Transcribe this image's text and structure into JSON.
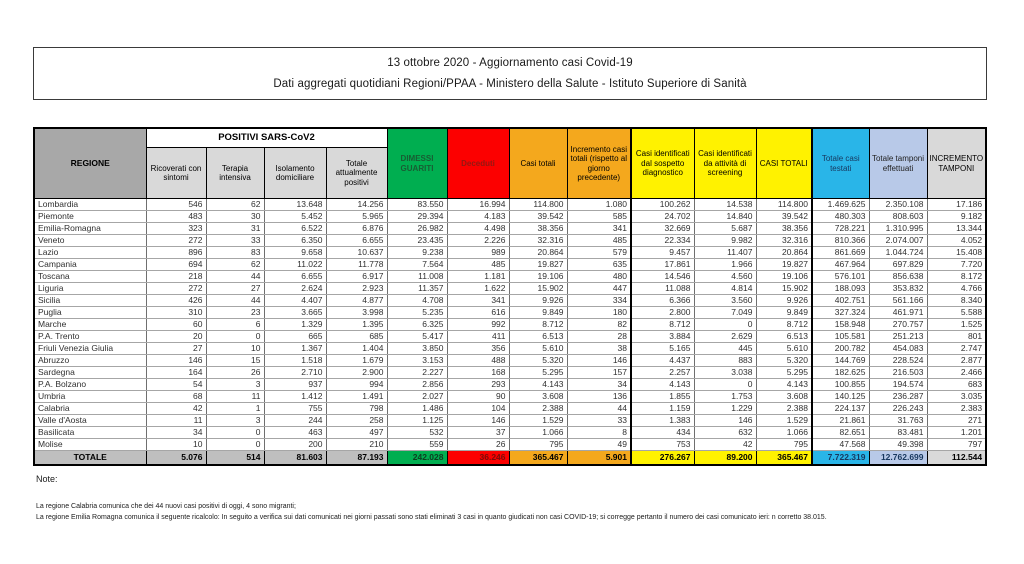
{
  "header": {
    "line1": "13 ottobre 2020 - Aggiornamento casi Covid-19",
    "line2": "Dati aggregati quotidiani Regioni/PPAA - Ministero della Salute - Istituto Superiore di Sanità"
  },
  "table": {
    "group_header": "POSITIVI SARS-CoV2",
    "columns": [
      {
        "label": "REGIONE",
        "bg": "#A8A8A8",
        "fg": "#000000",
        "total_bg": "#BFBFBF",
        "total_fg": "#000000"
      },
      {
        "label": "Ricoverati con sintomi",
        "bg": "#D9D9D9",
        "fg": "#000000",
        "total_bg": "#BFBFBF",
        "total_fg": "#000000"
      },
      {
        "label": "Terapia intensiva",
        "bg": "#D9D9D9",
        "fg": "#000000",
        "total_bg": "#BFBFBF",
        "total_fg": "#000000"
      },
      {
        "label": "Isolamento domiciliare",
        "bg": "#D9D9D9",
        "fg": "#000000",
        "total_bg": "#BFBFBF",
        "total_fg": "#000000"
      },
      {
        "label": "Totale attualmente positivi",
        "bg": "#D9D9D9",
        "fg": "#000000",
        "total_bg": "#BFBFBF",
        "total_fg": "#000000"
      },
      {
        "label": "DIMESSI GUARITI",
        "bg": "#00AE50",
        "fg": "#175E33",
        "total_bg": "#00AE50",
        "total_fg": "#0C3D20"
      },
      {
        "label": "Deceduti",
        "bg": "#FC0000",
        "fg": "#941712",
        "total_bg": "#FC0000",
        "total_fg": "#7A0C08"
      },
      {
        "label": "Casi totali",
        "bg": "#F4A81D",
        "fg": "#000000",
        "total_bg": "#F4A81D",
        "total_fg": "#000000"
      },
      {
        "label": "Incremento casi totali (rispetto al giorno precedente)",
        "bg": "#F4A81D",
        "fg": "#000000",
        "total_bg": "#F4A81D",
        "total_fg": "#000000"
      },
      {
        "label": "Casi identificati dal sospetto diagnostico",
        "bg": "#FFF200",
        "fg": "#000000",
        "total_bg": "#FFF200",
        "total_fg": "#000000"
      },
      {
        "label": "Casi identificati da attività di screening",
        "bg": "#FFF200",
        "fg": "#000000",
        "total_bg": "#FFF200",
        "total_fg": "#000000"
      },
      {
        "label": "CASI TOTALI",
        "bg": "#FFF200",
        "fg": "#000000",
        "total_bg": "#FFF200",
        "total_fg": "#000000"
      },
      {
        "label": "Totale casi testati",
        "bg": "#29B5E8",
        "fg": "#17375E",
        "total_bg": "#29B5E8",
        "total_fg": "#17375E"
      },
      {
        "label": "Totale tamponi effettuati",
        "bg": "#B8C9E8",
        "fg": "#222222",
        "total_bg": "#B8C9E8",
        "total_fg": "#17375E"
      },
      {
        "label": "INCREMENTO TAMPONI",
        "bg": "#D9D9D9",
        "fg": "#000000",
        "total_bg": "#D9D9D9",
        "total_fg": "#000000"
      }
    ],
    "rows": [
      {
        "region": "Lombardia",
        "values": [
          "546",
          "62",
          "13.648",
          "14.256",
          "83.550",
          "16.994",
          "114.800",
          "1.080",
          "100.262",
          "14.538",
          "114.800",
          "1.469.625",
          "2.350.108",
          "17.186"
        ]
      },
      {
        "region": "Piemonte",
        "values": [
          "483",
          "30",
          "5.452",
          "5.965",
          "29.394",
          "4.183",
          "39.542",
          "585",
          "24.702",
          "14.840",
          "39.542",
          "480.303",
          "808.603",
          "9.182"
        ]
      },
      {
        "region": "Emilia-Romagna",
        "values": [
          "323",
          "31",
          "6.522",
          "6.876",
          "26.982",
          "4.498",
          "38.356",
          "341",
          "32.669",
          "5.687",
          "38.356",
          "728.221",
          "1.310.995",
          "13.344"
        ]
      },
      {
        "region": "Veneto",
        "values": [
          "272",
          "33",
          "6.350",
          "6.655",
          "23.435",
          "2.226",
          "32.316",
          "485",
          "22.334",
          "9.982",
          "32.316",
          "810.366",
          "2.074.007",
          "4.052"
        ]
      },
      {
        "region": "Lazio",
        "values": [
          "896",
          "83",
          "9.658",
          "10.637",
          "9.238",
          "989",
          "20.864",
          "579",
          "9.457",
          "11.407",
          "20.864",
          "861.669",
          "1.044.724",
          "15.408"
        ]
      },
      {
        "region": "Campania",
        "values": [
          "694",
          "62",
          "11.022",
          "11.778",
          "7.564",
          "485",
          "19.827",
          "635",
          "17.861",
          "1.966",
          "19.827",
          "467.964",
          "697.829",
          "7.720"
        ]
      },
      {
        "region": "Toscana",
        "values": [
          "218",
          "44",
          "6.655",
          "6.917",
          "11.008",
          "1.181",
          "19.106",
          "480",
          "14.546",
          "4.560",
          "19.106",
          "576.101",
          "856.638",
          "8.172"
        ]
      },
      {
        "region": "Liguria",
        "values": [
          "272",
          "27",
          "2.624",
          "2.923",
          "11.357",
          "1.622",
          "15.902",
          "447",
          "11.088",
          "4.814",
          "15.902",
          "188.093",
          "353.832",
          "4.766"
        ]
      },
      {
        "region": "Sicilia",
        "values": [
          "426",
          "44",
          "4.407",
          "4.877",
          "4.708",
          "341",
          "9.926",
          "334",
          "6.366",
          "3.560",
          "9.926",
          "402.751",
          "561.166",
          "8.340"
        ]
      },
      {
        "region": "Puglia",
        "values": [
          "310",
          "23",
          "3.665",
          "3.998",
          "5.235",
          "616",
          "9.849",
          "180",
          "2.800",
          "7.049",
          "9.849",
          "327.324",
          "461.971",
          "5.588"
        ]
      },
      {
        "region": "Marche",
        "values": [
          "60",
          "6",
          "1.329",
          "1.395",
          "6.325",
          "992",
          "8.712",
          "82",
          "8.712",
          "0",
          "8.712",
          "158.948",
          "270.757",
          "1.525"
        ]
      },
      {
        "region": "P.A. Trento",
        "values": [
          "20",
          "0",
          "665",
          "685",
          "5.417",
          "411",
          "6.513",
          "28",
          "3.884",
          "2.629",
          "6.513",
          "105.581",
          "251.213",
          "801"
        ]
      },
      {
        "region": "Friuli Venezia Giulia",
        "values": [
          "27",
          "10",
          "1.367",
          "1.404",
          "3.850",
          "356",
          "5.610",
          "38",
          "5.165",
          "445",
          "5.610",
          "200.782",
          "454.083",
          "2.747"
        ]
      },
      {
        "region": "Abruzzo",
        "values": [
          "146",
          "15",
          "1.518",
          "1.679",
          "3.153",
          "488",
          "5.320",
          "146",
          "4.437",
          "883",
          "5.320",
          "144.769",
          "228.524",
          "2.877"
        ]
      },
      {
        "region": "Sardegna",
        "values": [
          "164",
          "26",
          "2.710",
          "2.900",
          "2.227",
          "168",
          "5.295",
          "157",
          "2.257",
          "3.038",
          "5.295",
          "182.625",
          "216.503",
          "2.466"
        ]
      },
      {
        "region": "P.A. Bolzano",
        "values": [
          "54",
          "3",
          "937",
          "994",
          "2.856",
          "293",
          "4.143",
          "34",
          "4.143",
          "0",
          "4.143",
          "100.855",
          "194.574",
          "683"
        ]
      },
      {
        "region": "Umbria",
        "values": [
          "68",
          "11",
          "1.412",
          "1.491",
          "2.027",
          "90",
          "3.608",
          "136",
          "1.855",
          "1.753",
          "3.608",
          "140.125",
          "236.287",
          "3.035"
        ]
      },
      {
        "region": "Calabria",
        "values": [
          "42",
          "1",
          "755",
          "798",
          "1.486",
          "104",
          "2.388",
          "44",
          "1.159",
          "1.229",
          "2.388",
          "224.137",
          "226.243",
          "2.383"
        ]
      },
      {
        "region": "Valle d'Aosta",
        "values": [
          "11",
          "3",
          "244",
          "258",
          "1.125",
          "146",
          "1.529",
          "33",
          "1.383",
          "146",
          "1.529",
          "21.861",
          "31.763",
          "271"
        ]
      },
      {
        "region": "Basilicata",
        "values": [
          "34",
          "0",
          "463",
          "497",
          "532",
          "37",
          "1.066",
          "8",
          "434",
          "632",
          "1.066",
          "82.651",
          "83.481",
          "1.201"
        ]
      },
      {
        "region": "Molise",
        "values": [
          "10",
          "0",
          "200",
          "210",
          "559",
          "26",
          "795",
          "49",
          "753",
          "42",
          "795",
          "47.568",
          "49.398",
          "797"
        ]
      }
    ],
    "total": {
      "label": "TOTALE",
      "values": [
        "5.076",
        "514",
        "81.603",
        "87.193",
        "242.028",
        "36.246",
        "365.467",
        "5.901",
        "276.267",
        "89.200",
        "365.467",
        "7.722.319",
        "12.762.699",
        "112.544"
      ]
    }
  },
  "notes": {
    "title": "Note:",
    "lines": [
      "La regione Calabria comunica che dei 44 nuovi casi positivi di oggi, 4 sono migranti;",
      "La regione Emilia Romagna comunica il seguente ricalcolo: In seguito a verifica sui dati comunicati nei giorni passati sono stati eliminati 3 casi in quanto giudicati non casi COVID-19; si corregge pertanto il numero dei casi comunicato ieri: n corretto 38.015."
    ]
  }
}
